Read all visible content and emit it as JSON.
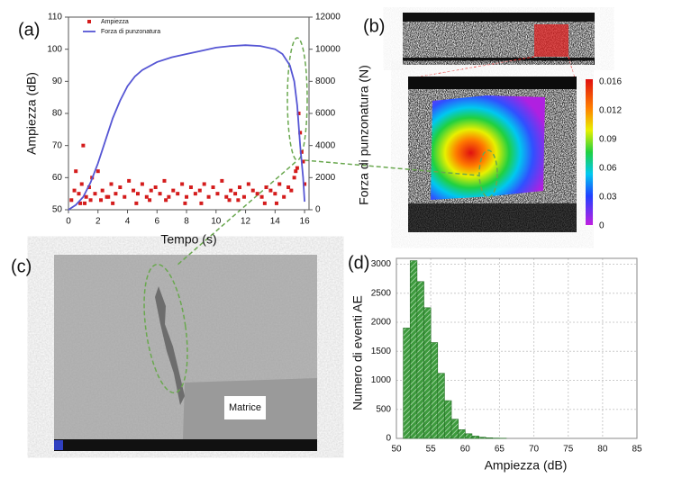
{
  "chart_data": [
    {
      "type": "scatter",
      "panel_label": "(a)",
      "x_label": "Tempo (s)",
      "y_label": "Ampiezza (dB)",
      "y2_label": "Forza di punzonatura (N)",
      "xlim": [
        0,
        16.3
      ],
      "xticks": [
        0,
        2,
        4,
        6,
        8,
        10,
        12,
        14,
        16
      ],
      "ylim": [
        50,
        110
      ],
      "yticks": [
        50,
        60,
        70,
        80,
        90,
        100,
        110
      ],
      "y2lim": [
        0,
        12000
      ],
      "y2ticks": [
        0,
        2000,
        4000,
        6000,
        8000,
        10000,
        12000
      ],
      "legend": "upper left",
      "series": [
        {
          "name": "Ampiezza",
          "color": "#d41c1c",
          "x": [
            0.2,
            0.4,
            0.5,
            0.7,
            0.9,
            1.0,
            1.2,
            1.4,
            1.6,
            1.8,
            2.0,
            2.3,
            2.6,
            2.9,
            3.2,
            3.5,
            3.8,
            4.1,
            4.4,
            4.7,
            5.0,
            5.3,
            5.6,
            5.9,
            6.2,
            6.5,
            6.8,
            7.1,
            7.4,
            7.7,
            8.0,
            8.3,
            8.6,
            8.9,
            9.2,
            9.5,
            9.8,
            10.1,
            10.4,
            10.7,
            11.0,
            11.3,
            11.6,
            11.9,
            12.2,
            12.5,
            12.8,
            13.1,
            13.4,
            13.7,
            14.0,
            14.3,
            14.6,
            14.9,
            15.1,
            15.3,
            15.5,
            15.6,
            15.7,
            15.8,
            15.9,
            16.0,
            1.1,
            2.2,
            3.0,
            5.5,
            7.9,
            10.9,
            13.3,
            15.4,
            0.8,
            1.5,
            2.7,
            4.6,
            6.6,
            9.0,
            11.5,
            14.1
          ],
          "values": [
            53,
            56,
            62,
            55,
            58,
            70,
            54,
            57,
            60,
            55,
            62,
            56,
            54,
            58,
            55,
            57,
            54,
            59,
            56,
            55,
            58,
            54,
            56,
            57,
            55,
            59,
            54,
            56,
            55,
            58,
            54,
            57,
            55,
            56,
            58,
            54,
            57,
            55,
            59,
            54,
            56,
            55,
            57,
            54,
            58,
            56,
            55,
            54,
            57,
            56,
            55,
            58,
            54,
            57,
            56,
            60,
            63,
            80,
            74,
            68,
            65,
            58,
            52,
            53,
            52,
            53,
            52,
            53,
            52,
            62,
            52,
            53,
            54,
            52,
            53,
            52,
            53,
            52
          ]
        },
        {
          "name": "Forza di punzonatura",
          "type": "line",
          "axis": "y2",
          "color": "#5656d4",
          "x": [
            0,
            0.5,
            1,
            1.5,
            2,
            2.5,
            3,
            3.5,
            4,
            4.5,
            5,
            6,
            7,
            8,
            9,
            10,
            11,
            12,
            13,
            14,
            14.5,
            15,
            15.3,
            15.5,
            15.7,
            15.9,
            16
          ],
          "values": [
            0,
            300,
            800,
            1700,
            2900,
            4300,
            5700,
            6800,
            7700,
            8300,
            8700,
            9200,
            9500,
            9700,
            9900,
            10100,
            10200,
            10250,
            10200,
            10000,
            9700,
            9000,
            8000,
            6500,
            4000,
            2000,
            500
          ]
        }
      ]
    },
    {
      "type": "histogram",
      "panel_label": "(d)",
      "x_label": "Ampiezza (dB)",
      "y_label": "Numero di eventi AE",
      "color": "#3d9a3d",
      "grid": true,
      "bins": [
        51,
        52,
        53,
        54,
        55,
        56,
        57,
        58,
        59,
        60,
        61,
        62,
        63,
        64,
        65,
        66
      ],
      "values": [
        1900,
        3060,
        2700,
        2250,
        1650,
        1120,
        650,
        330,
        150,
        80,
        40,
        20,
        10,
        5,
        3
      ],
      "xlim": [
        50,
        85
      ],
      "xticks": [
        50,
        55,
        60,
        65,
        70,
        75,
        80,
        85
      ],
      "ylim": [
        0,
        3100
      ],
      "yticks": [
        0,
        500,
        1000,
        1500,
        2000,
        2500,
        3000
      ]
    }
  ],
  "panels": {
    "b": {
      "label": "(b)",
      "colorbar_labels": [
        "0.016",
        "0.012",
        "0.09",
        "0.06",
        "0.03",
        "0"
      ]
    },
    "c": {
      "label": "(c)",
      "annotation": "Matrice"
    }
  }
}
